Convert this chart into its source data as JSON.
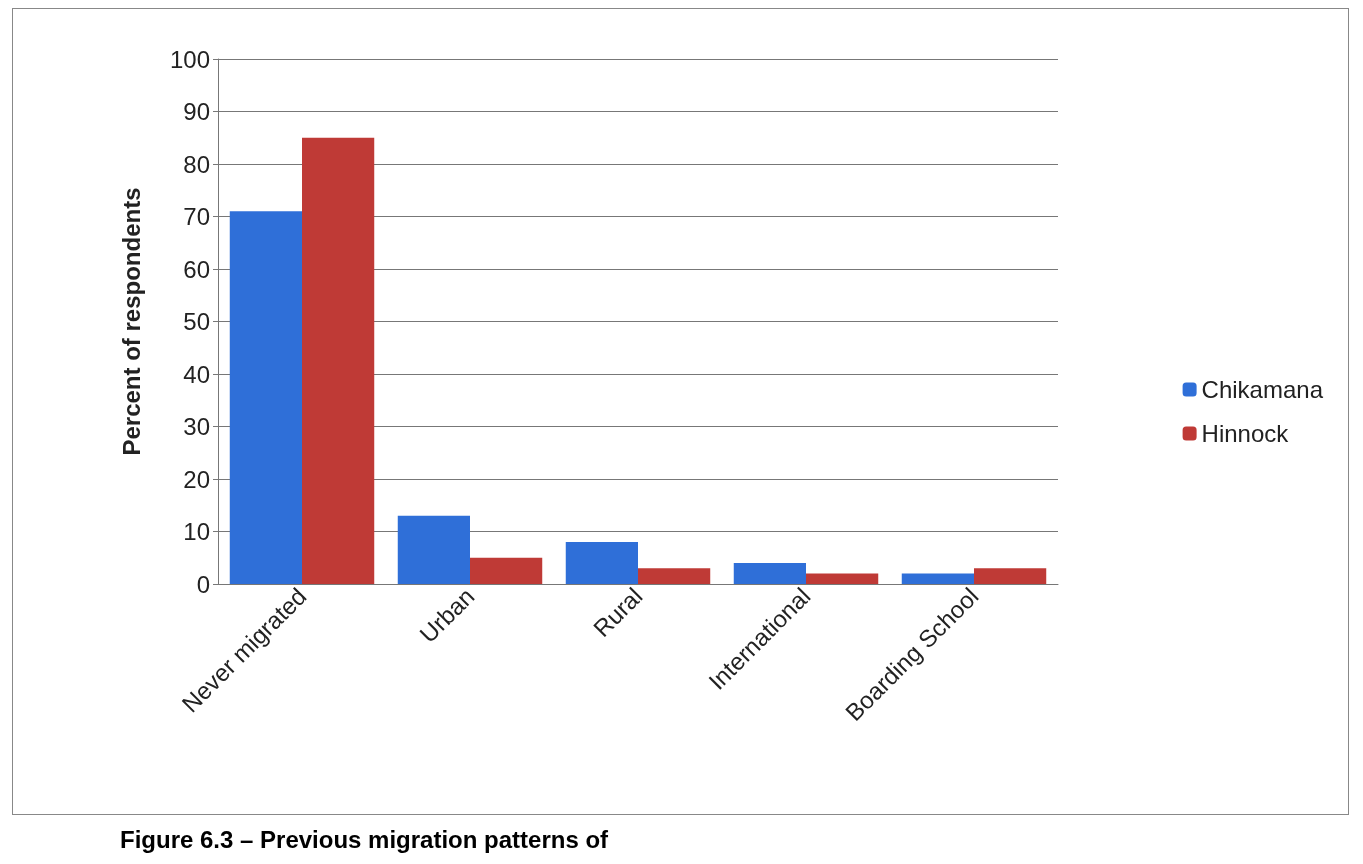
{
  "chart_data": {
    "type": "bar",
    "ylabel": "Percent of respondents",
    "categories": [
      "Never migrated",
      "Urban",
      "Rural",
      "International",
      "Boarding School"
    ],
    "series": [
      {
        "name": "Chikamana",
        "color": "#2f6fd8",
        "values": [
          71,
          13,
          8,
          4,
          2
        ]
      },
      {
        "name": "Hinnock",
        "color": "#bf3a36",
        "values": [
          85,
          5,
          3,
          2,
          3
        ]
      }
    ],
    "ylim": [
      0,
      100
    ],
    "yticks": [
      0,
      10,
      20,
      30,
      40,
      50,
      60,
      70,
      80,
      90,
      100
    ],
    "grid": "y",
    "legend": "right",
    "annotations": [
      "Figure 6.3 – Previous migration patterns of"
    ]
  }
}
